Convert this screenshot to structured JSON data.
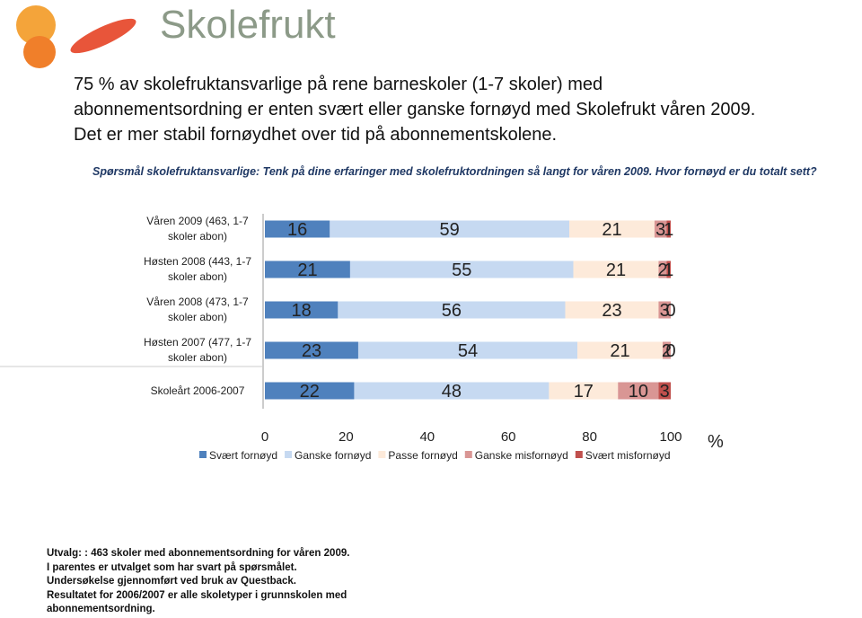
{
  "header": {
    "logo": "Skolefrukt"
  },
  "headline": [
    "75 % av skolefruktansvarlige på rene barneskoler (1-7 skoler) med",
    "abonnementsordning er enten svært eller ganske fornøyd med Skolefrukt våren 2009.",
    "Det er mer stabil fornøydhet over tid på abonnementskolene."
  ],
  "question": "Spørsmål skolefruktansvarlige: Tenk på dine erfaringer med skolefruktordningen så langt for våren 2009. Hvor fornøyd er du totalt sett?",
  "chart_data": {
    "type": "stacked-bar-horizontal",
    "categories": [
      "Våren 2009 (463, 1-7 skoler abon)",
      "Høsten 2008 (443, 1-7 skoler abon)",
      "Våren 2008 (473, 1-7 skoler abon)",
      "Høsten 2007 (477, 1-7 skoler abon)",
      "Skoleårt 2006-2007"
    ],
    "series": [
      {
        "name": "Svært fornøyd",
        "color": "#4f81bd",
        "values": [
          16,
          21,
          18,
          23,
          22
        ]
      },
      {
        "name": "Ganske fornøyd",
        "color": "#c6d9f1",
        "values": [
          59,
          55,
          56,
          54,
          48
        ]
      },
      {
        "name": "Passe fornøyd",
        "color": "#fdeada",
        "values": [
          21,
          21,
          23,
          21,
          17
        ]
      },
      {
        "name": "Ganske misfornøyd",
        "color": "#d99694",
        "values": [
          3,
          2,
          3,
          2,
          10
        ]
      },
      {
        "name": "Svært misfornøyd",
        "color": "#c0504d",
        "values": [
          1,
          1,
          0,
          0,
          3
        ]
      }
    ],
    "xlim": [
      0,
      100
    ],
    "xticks": [
      0,
      20,
      40,
      60,
      80,
      100
    ],
    "x_unit_label": "%"
  },
  "footnotes": [
    "Utvalg: : 463 skoler med abonnementsordning for våren 2009.",
    "I parentes er utvalget som har svart på spørsmålet.",
    "Undersøkelse gjennomført ved bruk av Questback.",
    "Resultatet for 2006/2007 er alle skoletyper i grunnskolen med abonnementsordning."
  ]
}
